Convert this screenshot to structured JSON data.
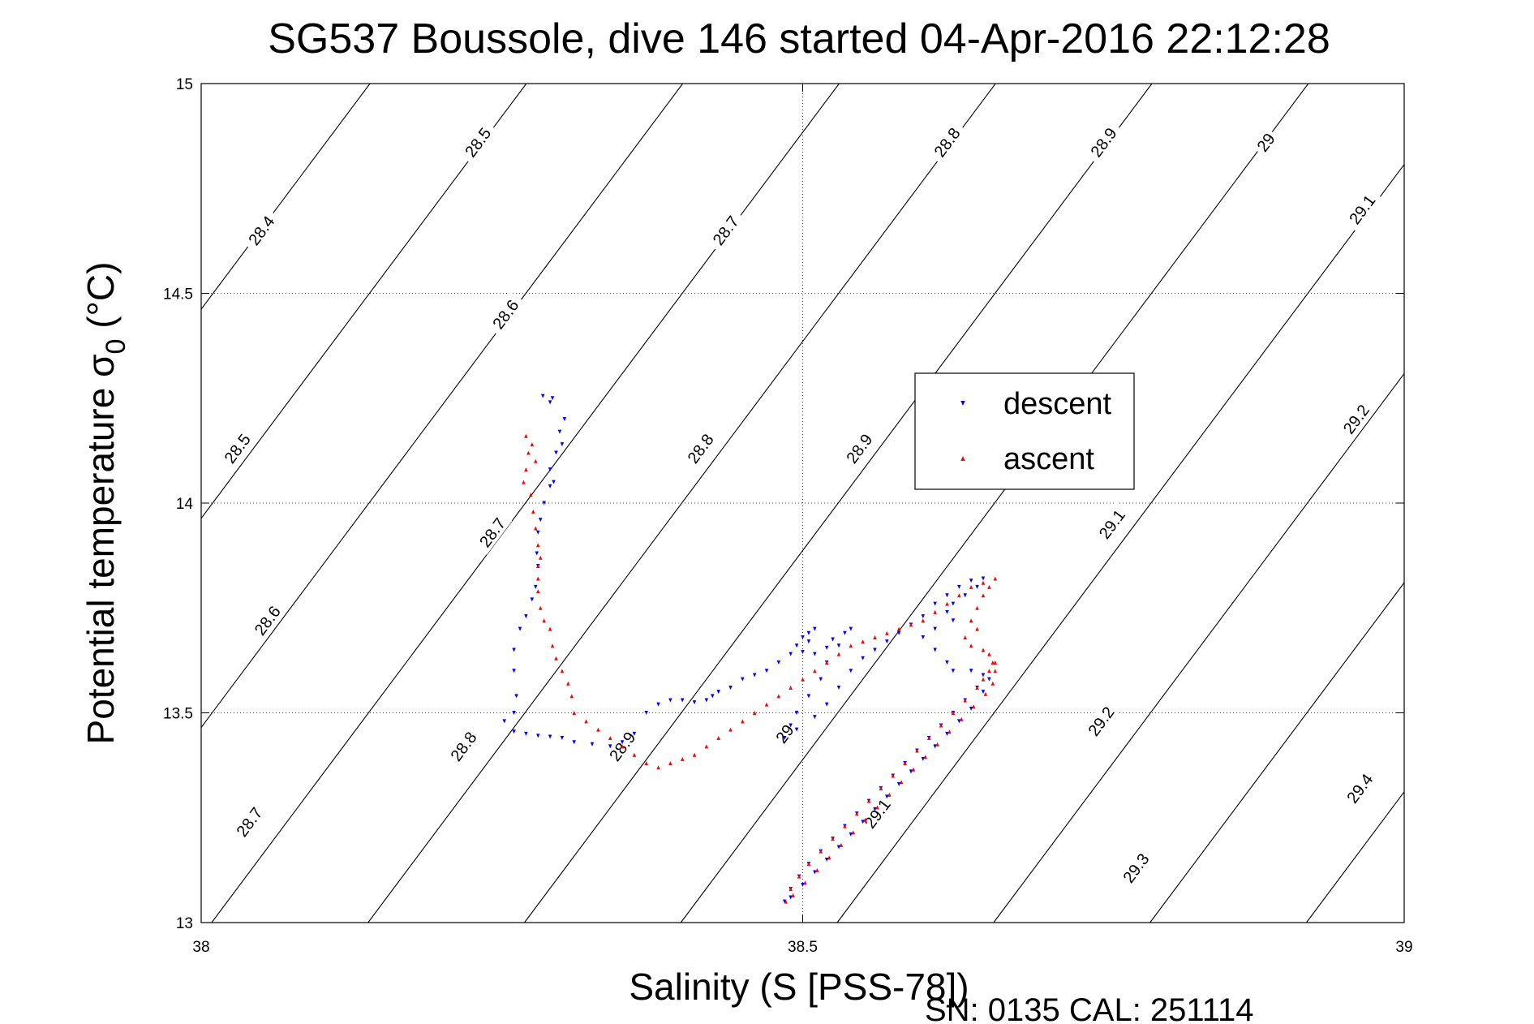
{
  "chart_data": {
    "type": "scatter",
    "title": "SG537 Boussole, dive 146 started 04-Apr-2016 22:12:28",
    "xlabel": "Salinity (S [PSS-78])",
    "ylabel_main": "Potential temperature σ",
    "ylabel_sub": "0",
    "ylabel_unit": " (°C)",
    "xlim": [
      38,
      39
    ],
    "ylim": [
      13,
      15
    ],
    "xticks": [
      38,
      38.5,
      39
    ],
    "xtick_labels": [
      "38",
      "38.5",
      "39"
    ],
    "yticks": [
      13,
      13.5,
      14,
      14.5,
      15
    ],
    "ytick_labels": [
      "13",
      "13.5",
      "14",
      "14.5",
      "15"
    ],
    "grid": true,
    "legend_position": "upper-right",
    "contour_slope_salinity_per_degC": 0.2608,
    "contours": [
      {
        "value": 28.4,
        "label": "28.4",
        "s_at_13": 37.6187
      },
      {
        "value": 28.5,
        "label": "28.5",
        "s_at_13": 37.7487
      },
      {
        "value": 28.6,
        "label": "28.6",
        "s_at_13": 37.8787
      },
      {
        "value": 28.7,
        "label": "28.7",
        "s_at_13": 38.0087
      },
      {
        "value": 28.8,
        "label": "28.8",
        "s_at_13": 38.1387
      },
      {
        "value": 28.9,
        "label": "28.9",
        "s_at_13": 38.2687
      },
      {
        "value": 29.0,
        "label": "29",
        "s_at_13": 38.3987
      },
      {
        "value": 29.1,
        "label": "29.1",
        "s_at_13": 38.5287
      },
      {
        "value": 29.2,
        "label": "29.2",
        "s_at_13": 38.6587
      },
      {
        "value": 29.3,
        "label": "29.3",
        "s_at_13": 38.7887
      },
      {
        "value": 29.4,
        "label": "29.4",
        "s_at_13": 38.9187
      },
      {
        "value": 29.5,
        "label": "",
        "s_at_13": 39.0487
      }
    ],
    "contour_labels": [
      {
        "text": "28.4",
        "s": 38.05,
        "t": 14.65
      },
      {
        "text": "28.5",
        "s": 38.23,
        "t": 14.86
      },
      {
        "text": "28.6",
        "s": 38.253,
        "t": 14.45
      },
      {
        "text": "28.7",
        "s": 38.436,
        "t": 14.65
      },
      {
        "text": "28.8",
        "s": 38.62,
        "t": 14.86
      },
      {
        "text": "28.9",
        "s": 38.75,
        "t": 14.86
      },
      {
        "text": "29",
        "s": 38.885,
        "t": 14.86
      },
      {
        "text": "29.1",
        "s": 38.965,
        "t": 14.7
      },
      {
        "text": "28.5",
        "s": 38.03,
        "t": 14.13
      },
      {
        "text": "28.6",
        "s": 38.055,
        "t": 13.72
      },
      {
        "text": "28.7",
        "s": 38.242,
        "t": 13.93
      },
      {
        "text": "28.8",
        "s": 38.415,
        "t": 14.13
      },
      {
        "text": "28.9",
        "s": 38.547,
        "t": 14.13
      },
      {
        "text": "29.1",
        "s": 38.757,
        "t": 13.95
      },
      {
        "text": "29.2",
        "s": 38.96,
        "t": 14.2
      },
      {
        "text": "28.7",
        "s": 38.04,
        "t": 13.24
      },
      {
        "text": "28.8",
        "s": 38.218,
        "t": 13.42
      },
      {
        "text": "28.9",
        "s": 38.35,
        "t": 13.42
      },
      {
        "text": "29",
        "s": 38.485,
        "t": 13.45
      },
      {
        "text": "29.1",
        "s": 38.562,
        "t": 13.26
      },
      {
        "text": "29.2",
        "s": 38.748,
        "t": 13.48
      },
      {
        "text": "29.3",
        "s": 38.777,
        "t": 13.13
      },
      {
        "text": "29.4",
        "s": 38.963,
        "t": 13.32
      }
    ],
    "series": [
      {
        "name": "descent",
        "color": "#0000ff",
        "marker": "triangle-down",
        "points": [
          [
            38.284,
            14.255
          ],
          [
            38.292,
            14.25
          ],
          [
            38.29,
            14.24
          ],
          [
            38.302,
            14.2
          ],
          [
            38.298,
            14.17
          ],
          [
            38.3,
            14.14
          ],
          [
            38.295,
            14.12
          ],
          [
            38.29,
            14.08
          ],
          [
            38.293,
            14.05
          ],
          [
            38.29,
            14.04
          ],
          [
            38.285,
            14.0
          ],
          [
            38.282,
            13.96
          ],
          [
            38.28,
            13.93
          ],
          [
            38.279,
            13.88
          ],
          [
            38.28,
            13.85
          ],
          [
            38.278,
            13.8
          ],
          [
            38.275,
            13.77
          ],
          [
            38.27,
            13.73
          ],
          [
            38.265,
            13.7
          ],
          [
            38.26,
            13.65
          ],
          [
            38.26,
            13.6
          ],
          [
            38.262,
            13.54
          ],
          [
            38.26,
            13.5
          ],
          [
            38.252,
            13.48
          ],
          [
            38.26,
            13.455
          ],
          [
            38.27,
            13.45
          ],
          [
            38.28,
            13.445
          ],
          [
            38.29,
            13.443
          ],
          [
            38.3,
            13.44
          ],
          [
            38.31,
            13.43
          ],
          [
            38.325,
            13.425
          ],
          [
            38.34,
            13.42
          ],
          [
            38.35,
            13.43
          ],
          [
            38.36,
            13.45
          ],
          [
            38.37,
            13.5
          ],
          [
            38.38,
            13.52
          ],
          [
            38.39,
            13.53
          ],
          [
            38.4,
            13.53
          ],
          [
            38.41,
            13.525
          ],
          [
            38.42,
            13.53
          ],
          [
            38.425,
            13.54
          ],
          [
            38.43,
            13.55
          ],
          [
            38.44,
            13.56
          ],
          [
            38.45,
            13.58
          ],
          [
            38.46,
            13.59
          ],
          [
            38.47,
            13.6
          ],
          [
            38.48,
            13.62
          ],
          [
            38.49,
            13.64
          ],
          [
            38.495,
            13.66
          ],
          [
            38.5,
            13.68
          ],
          [
            38.505,
            13.69
          ],
          [
            38.51,
            13.7
          ],
          [
            38.505,
            13.67
          ],
          [
            38.5,
            13.645
          ],
          [
            38.51,
            13.64
          ],
          [
            38.52,
            13.655
          ],
          [
            38.525,
            13.675
          ],
          [
            38.535,
            13.69
          ],
          [
            38.54,
            13.7
          ],
          [
            38.53,
            13.66
          ],
          [
            38.52,
            13.62
          ],
          [
            38.515,
            13.58
          ],
          [
            38.505,
            13.54
          ],
          [
            38.495,
            13.5
          ],
          [
            38.49,
            13.47
          ],
          [
            38.485,
            13.44
          ],
          [
            38.495,
            13.46
          ],
          [
            38.51,
            13.49
          ],
          [
            38.52,
            13.52
          ],
          [
            38.53,
            13.56
          ],
          [
            38.54,
            13.6
          ],
          [
            38.55,
            13.63
          ],
          [
            38.56,
            13.65
          ],
          [
            38.57,
            13.67
          ],
          [
            38.58,
            13.69
          ],
          [
            38.59,
            13.71
          ],
          [
            38.6,
            13.73
          ],
          [
            38.61,
            13.76
          ],
          [
            38.62,
            13.78
          ],
          [
            38.63,
            13.8
          ],
          [
            38.64,
            13.815
          ],
          [
            38.65,
            13.82
          ],
          [
            38.645,
            13.8
          ],
          [
            38.635,
            13.78
          ],
          [
            38.625,
            13.76
          ],
          [
            38.62,
            13.74
          ],
          [
            38.625,
            13.72
          ],
          [
            38.61,
            13.7
          ],
          [
            38.6,
            13.68
          ],
          [
            38.61,
            13.65
          ],
          [
            38.62,
            13.62
          ],
          [
            38.625,
            13.6
          ],
          [
            38.64,
            13.6
          ],
          [
            38.65,
            13.59
          ],
          [
            38.645,
            13.56
          ],
          [
            38.635,
            13.53
          ],
          [
            38.625,
            13.5
          ],
          [
            38.615,
            13.47
          ],
          [
            38.605,
            13.44
          ],
          [
            38.595,
            13.41
          ],
          [
            38.585,
            13.38
          ],
          [
            38.575,
            13.35
          ],
          [
            38.565,
            13.32
          ],
          [
            38.555,
            13.29
          ],
          [
            38.545,
            13.26
          ],
          [
            38.535,
            13.23
          ],
          [
            38.525,
            13.2
          ],
          [
            38.515,
            13.17
          ],
          [
            38.505,
            13.14
          ],
          [
            38.497,
            13.11
          ],
          [
            38.49,
            13.08
          ],
          [
            38.485,
            13.05
          ],
          [
            38.49,
            13.06
          ],
          [
            38.5,
            13.09
          ],
          [
            38.51,
            13.12
          ],
          [
            38.52,
            13.15
          ],
          [
            38.53,
            13.18
          ],
          [
            38.54,
            13.21
          ],
          [
            38.55,
            13.24
          ],
          [
            38.56,
            13.27
          ],
          [
            38.57,
            13.3
          ],
          [
            38.58,
            13.33
          ],
          [
            38.59,
            13.36
          ],
          [
            38.6,
            13.39
          ],
          [
            38.61,
            13.42
          ],
          [
            38.62,
            13.45
          ],
          [
            38.63,
            13.48
          ],
          [
            38.64,
            13.51
          ],
          [
            38.65,
            13.55
          ],
          [
            38.655,
            13.58
          ]
        ]
      },
      {
        "name": "ascent",
        "color": "#ff0000",
        "marker": "triangle-up",
        "points": [
          [
            38.27,
            14.16
          ],
          [
            38.275,
            14.14
          ],
          [
            38.272,
            14.12
          ],
          [
            38.278,
            14.1
          ],
          [
            38.27,
            14.08
          ],
          [
            38.268,
            14.05
          ],
          [
            38.274,
            14.02
          ],
          [
            38.276,
            13.98
          ],
          [
            38.278,
            13.94
          ],
          [
            38.28,
            13.9
          ],
          [
            38.282,
            13.87
          ],
          [
            38.28,
            13.85
          ],
          [
            38.28,
            13.82
          ],
          [
            38.28,
            13.79
          ],
          [
            38.282,
            13.75
          ],
          [
            38.285,
            13.72
          ],
          [
            38.29,
            13.7
          ],
          [
            38.292,
            13.66
          ],
          [
            38.295,
            13.63
          ],
          [
            38.3,
            13.6
          ],
          [
            38.305,
            13.57
          ],
          [
            38.308,
            13.54
          ],
          [
            38.31,
            13.5
          ],
          [
            38.32,
            13.48
          ],
          [
            38.33,
            13.46
          ],
          [
            38.34,
            13.44
          ],
          [
            38.35,
            13.42
          ],
          [
            38.36,
            13.4
          ],
          [
            38.37,
            13.38
          ],
          [
            38.38,
            13.37
          ],
          [
            38.39,
            13.38
          ],
          [
            38.4,
            13.39
          ],
          [
            38.41,
            13.4
          ],
          [
            38.42,
            13.42
          ],
          [
            38.43,
            13.44
          ],
          [
            38.44,
            13.46
          ],
          [
            38.45,
            13.48
          ],
          [
            38.46,
            13.5
          ],
          [
            38.47,
            13.52
          ],
          [
            38.48,
            13.54
          ],
          [
            38.49,
            13.56
          ],
          [
            38.5,
            13.58
          ],
          [
            38.51,
            13.6
          ],
          [
            38.52,
            13.62
          ],
          [
            38.53,
            13.64
          ],
          [
            38.54,
            13.66
          ],
          [
            38.55,
            13.67
          ],
          [
            38.56,
            13.68
          ],
          [
            38.57,
            13.69
          ],
          [
            38.58,
            13.7
          ],
          [
            38.59,
            13.71
          ],
          [
            38.6,
            13.72
          ],
          [
            38.61,
            13.74
          ],
          [
            38.62,
            13.76
          ],
          [
            38.63,
            13.78
          ],
          [
            38.64,
            13.8
          ],
          [
            38.65,
            13.81
          ],
          [
            38.66,
            13.82
          ],
          [
            38.655,
            13.8
          ],
          [
            38.65,
            13.78
          ],
          [
            38.645,
            13.75
          ],
          [
            38.64,
            13.72
          ],
          [
            38.645,
            13.7
          ],
          [
            38.635,
            13.68
          ],
          [
            38.64,
            13.66
          ],
          [
            38.65,
            13.65
          ],
          [
            38.655,
            13.64
          ],
          [
            38.66,
            13.62
          ],
          [
            38.655,
            13.6
          ],
          [
            38.65,
            13.58
          ],
          [
            38.645,
            13.56
          ],
          [
            38.635,
            13.53
          ],
          [
            38.625,
            13.5
          ],
          [
            38.615,
            13.47
          ],
          [
            38.605,
            13.44
          ],
          [
            38.595,
            13.41
          ],
          [
            38.585,
            13.38
          ],
          [
            38.575,
            13.35
          ],
          [
            38.565,
            13.32
          ],
          [
            38.555,
            13.29
          ],
          [
            38.545,
            13.26
          ],
          [
            38.535,
            13.23
          ],
          [
            38.525,
            13.2
          ],
          [
            38.515,
            13.17
          ],
          [
            38.505,
            13.14
          ],
          [
            38.497,
            13.11
          ],
          [
            38.49,
            13.08
          ],
          [
            38.486,
            13.05
          ],
          [
            38.492,
            13.065
          ],
          [
            38.502,
            13.095
          ],
          [
            38.512,
            13.125
          ],
          [
            38.522,
            13.155
          ],
          [
            38.532,
            13.185
          ],
          [
            38.542,
            13.215
          ],
          [
            38.552,
            13.245
          ],
          [
            38.562,
            13.275
          ],
          [
            38.572,
            13.305
          ],
          [
            38.582,
            13.335
          ],
          [
            38.592,
            13.365
          ],
          [
            38.602,
            13.395
          ],
          [
            38.612,
            13.425
          ],
          [
            38.622,
            13.455
          ],
          [
            38.632,
            13.485
          ],
          [
            38.642,
            13.515
          ],
          [
            38.652,
            13.545
          ],
          [
            38.658,
            13.57
          ],
          [
            38.66,
            13.6
          ],
          [
            38.658,
            13.62
          ]
        ]
      }
    ]
  },
  "footer_text": "SN: 0135  CAL: 251114"
}
